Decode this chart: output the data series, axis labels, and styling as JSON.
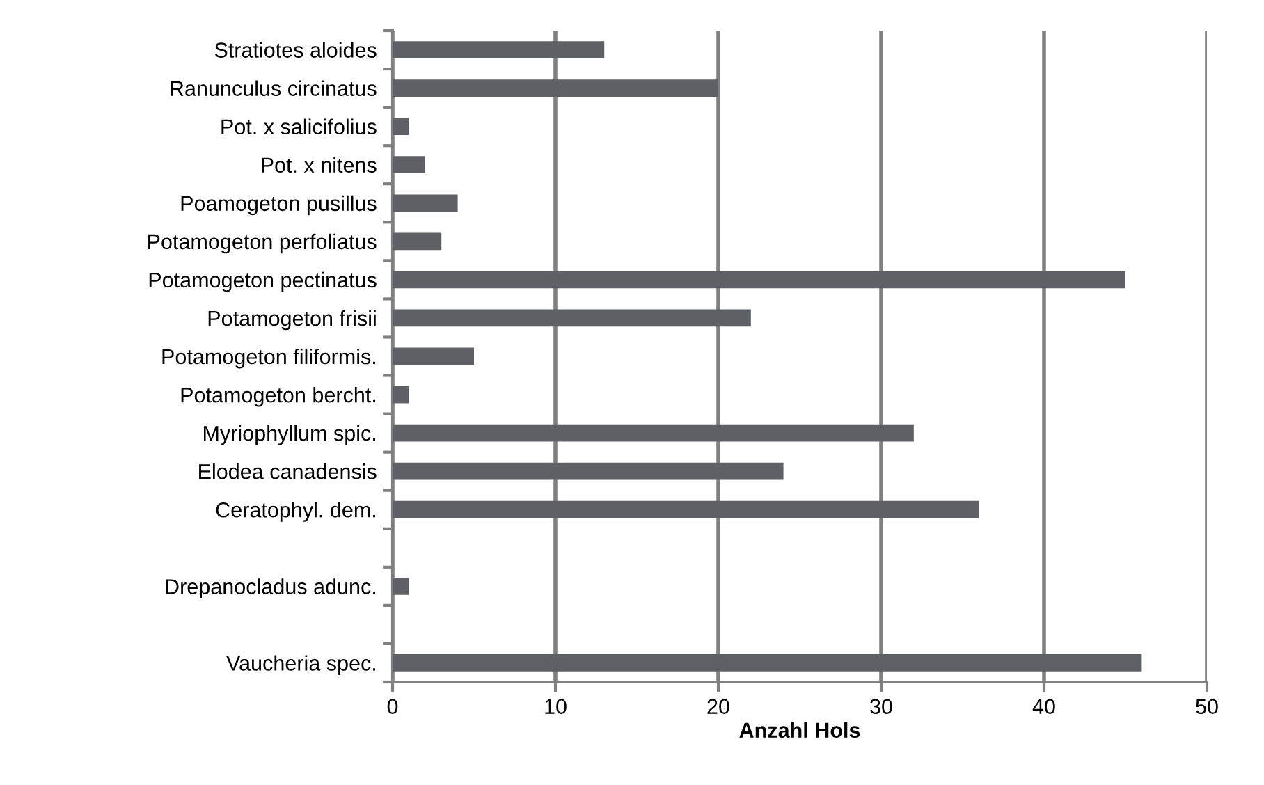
{
  "chart_data": {
    "type": "bar",
    "orientation": "horizontal",
    "xlabel": "Anzahl Hols",
    "categories": [
      "Stratiotes aloides",
      "Ranunculus circinatus",
      "Pot. x salicifolius",
      "Pot. x nitens",
      "Poamogeton pusillus",
      "Potamogeton perfoliatus",
      "Potamogeton pectinatus",
      "Potamogeton frisii",
      "Potamogeton filiformis.",
      "Potamogeton bercht.",
      "Myriophyllum spic.",
      "Elodea canadensis",
      "Ceratophyl. dem.",
      null,
      "Drepanocladus adunc.",
      null,
      "Vaucheria spec."
    ],
    "values": [
      13,
      20,
      1,
      2,
      4,
      3,
      45,
      22,
      5,
      1,
      32,
      24,
      36,
      null,
      1,
      null,
      46
    ],
    "color": "#5f6065",
    "xlim": [
      0,
      50
    ],
    "xticks": [
      0,
      10,
      20,
      30,
      40,
      50
    ],
    "grid": "x"
  }
}
